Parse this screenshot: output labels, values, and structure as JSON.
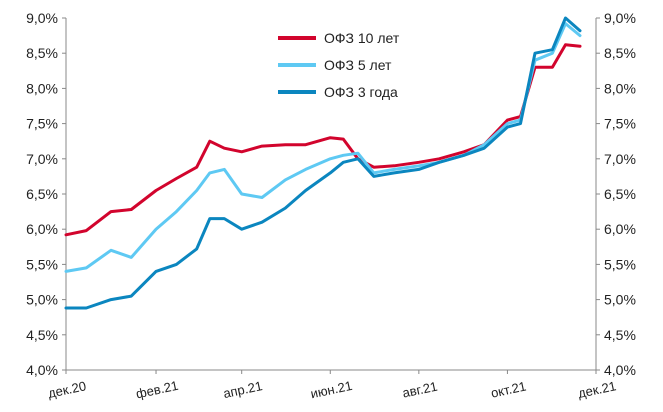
{
  "chart_data": {
    "type": "line",
    "title": "",
    "xlabel": "",
    "ylabel": "",
    "ylim": [
      4.0,
      9.0
    ],
    "yticks": [
      "4,0%",
      "4,5%",
      "5,0%",
      "5,5%",
      "6,0%",
      "6,5%",
      "7,0%",
      "7,5%",
      "8,0%",
      "8,5%",
      "9,0%"
    ],
    "y_axis_sides": "left and right",
    "grid": false,
    "x_tick_labels": [
      "дек.20",
      "фев.21",
      "апр.21",
      "июн.21",
      "авг.21",
      "окт.21",
      "дек.21"
    ],
    "x_range": [
      "дек.20",
      "дек.21"
    ],
    "legend": "top-center",
    "colors": {
      "ofz10": "#d2042d",
      "ofz5": "#5ec9f3",
      "ofz3": "#0b86bf"
    },
    "series": [
      {
        "name": "ОФЗ 10 лет",
        "color": "#d2042d",
        "x": [
          "2020-12-01",
          "2020-12-15",
          "2021-01-01",
          "2021-01-15",
          "2021-02-01",
          "2021-02-15",
          "2021-03-01",
          "2021-03-10",
          "2021-03-20",
          "2021-04-01",
          "2021-04-15",
          "2021-05-01",
          "2021-05-15",
          "2021-06-01",
          "2021-06-10",
          "2021-06-20",
          "2021-07-01",
          "2021-07-15",
          "2021-08-01",
          "2021-08-15",
          "2021-09-01",
          "2021-09-15",
          "2021-10-01",
          "2021-10-10",
          "2021-10-20",
          "2021-11-01",
          "2021-11-10",
          "2021-11-20"
        ],
        "values": [
          5.92,
          5.98,
          6.25,
          6.28,
          6.55,
          6.72,
          6.88,
          7.25,
          7.15,
          7.1,
          7.18,
          7.2,
          7.2,
          7.3,
          7.28,
          7.0,
          6.88,
          6.9,
          6.95,
          7.0,
          7.1,
          7.2,
          7.55,
          7.6,
          8.3,
          8.3,
          8.62,
          8.6
        ]
      },
      {
        "name": "ОФЗ 5 лет",
        "color": "#5ec9f3",
        "x": [
          "2020-12-01",
          "2020-12-15",
          "2021-01-01",
          "2021-01-15",
          "2021-02-01",
          "2021-02-15",
          "2021-03-01",
          "2021-03-10",
          "2021-03-20",
          "2021-04-01",
          "2021-04-15",
          "2021-05-01",
          "2021-05-15",
          "2021-06-01",
          "2021-06-10",
          "2021-06-20",
          "2021-07-01",
          "2021-07-15",
          "2021-08-01",
          "2021-08-15",
          "2021-09-01",
          "2021-09-15",
          "2021-10-01",
          "2021-10-10",
          "2021-10-20",
          "2021-11-01",
          "2021-11-10",
          "2021-11-20"
        ],
        "values": [
          5.4,
          5.45,
          5.7,
          5.6,
          6.0,
          6.25,
          6.55,
          6.8,
          6.85,
          6.5,
          6.45,
          6.7,
          6.85,
          7.0,
          7.05,
          7.08,
          6.8,
          6.85,
          6.9,
          6.95,
          7.05,
          7.2,
          7.5,
          7.55,
          8.4,
          8.5,
          8.92,
          8.75
        ]
      },
      {
        "name": "ОФЗ 3 года",
        "color": "#0b86bf",
        "x": [
          "2020-12-01",
          "2020-12-15",
          "2021-01-01",
          "2021-01-15",
          "2021-02-01",
          "2021-02-15",
          "2021-03-01",
          "2021-03-10",
          "2021-03-20",
          "2021-04-01",
          "2021-04-15",
          "2021-05-01",
          "2021-05-15",
          "2021-06-01",
          "2021-06-10",
          "2021-06-20",
          "2021-07-01",
          "2021-07-15",
          "2021-08-01",
          "2021-08-15",
          "2021-09-01",
          "2021-09-15",
          "2021-10-01",
          "2021-10-10",
          "2021-10-20",
          "2021-11-01",
          "2021-11-10",
          "2021-11-20"
        ],
        "values": [
          4.88,
          4.88,
          5.0,
          5.05,
          5.4,
          5.5,
          5.72,
          6.15,
          6.15,
          6.0,
          6.1,
          6.3,
          6.55,
          6.8,
          6.95,
          7.0,
          6.75,
          6.8,
          6.85,
          6.95,
          7.05,
          7.15,
          7.45,
          7.5,
          8.5,
          8.55,
          9.0,
          8.82
        ]
      }
    ]
  }
}
